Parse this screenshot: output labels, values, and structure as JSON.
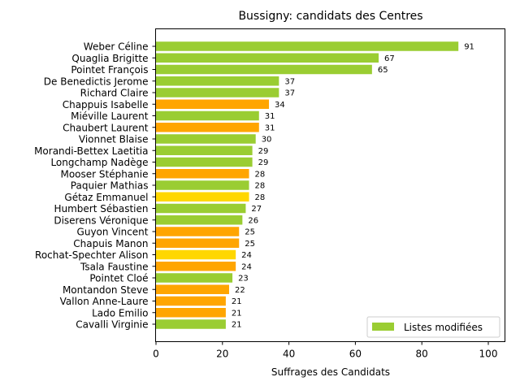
{
  "chart_data": {
    "type": "bar",
    "orientation": "horizontal",
    "title": "Bussigny: candidats des Centres",
    "xlabel": "Suffrages des Candidats",
    "ylabel": "",
    "xlim": [
      0,
      105
    ],
    "xticks": [
      0,
      20,
      40,
      60,
      80,
      100
    ],
    "legend": {
      "label": "Listes modifiées",
      "color": "#9acd32",
      "placement": "lower-right"
    },
    "colors": {
      "green": "#9acd32",
      "orange": "#ffa500",
      "yellow": "#ffd700"
    },
    "categories": [
      "Weber Céline",
      "Quaglia Brigitte",
      "Pointet François",
      "De Benedictis Jerome",
      "Richard Claire",
      "Chappuis Isabelle",
      "Miéville Laurent",
      "Chaubert Laurent",
      "Vionnet Blaise",
      "Morandi-Bettex Laetitia",
      "Longchamp Nadège",
      "Mooser Stéphanie",
      "Paquier Mathias",
      "Gétaz Emmanuel",
      "Humbert Sébastien",
      "Diserens Véronique",
      "Guyon Vincent",
      "Chapuis Manon",
      "Rochat-Spechter Alison",
      "Tsala Faustine",
      "Pointet Cloé",
      "Montandon Steve",
      "Vallon Anne-Laure",
      "Lado Emilio",
      "Cavalli Virginie"
    ],
    "values": [
      91,
      67,
      65,
      37,
      37,
      34,
      31,
      31,
      30,
      29,
      29,
      28,
      28,
      28,
      27,
      26,
      25,
      25,
      24,
      24,
      23,
      22,
      21,
      21,
      21
    ],
    "bar_colors": [
      "green",
      "green",
      "green",
      "green",
      "green",
      "orange",
      "green",
      "orange",
      "green",
      "green",
      "green",
      "orange",
      "green",
      "yellow",
      "green",
      "green",
      "orange",
      "orange",
      "yellow",
      "orange",
      "green",
      "orange",
      "orange",
      "orange",
      "green"
    ]
  }
}
